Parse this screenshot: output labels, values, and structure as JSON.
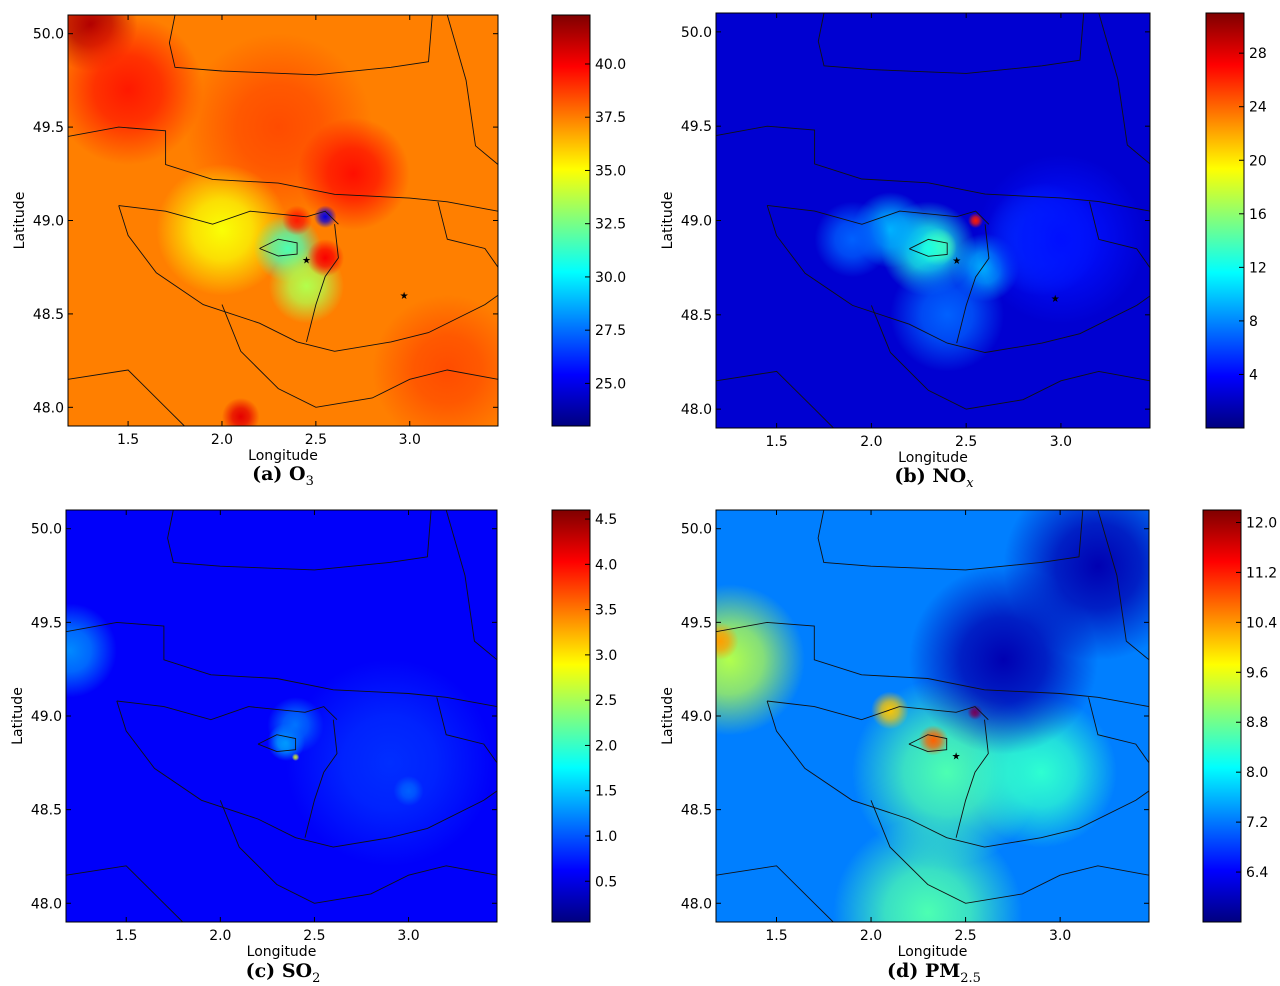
{
  "colormap": [
    "#00007f",
    "#0000ff",
    "#007fff",
    "#00ffff",
    "#7fff7f",
    "#ffff00",
    "#ff7f00",
    "#ff0000",
    "#7f0000"
  ],
  "chart_data": [
    {
      "type": "heatmap",
      "caption_label": "(a)",
      "caption_species": "O",
      "caption_sub": "3",
      "xlabel": "Longitude",
      "ylabel": "Latitude",
      "xlim": [
        1.18,
        3.47
      ],
      "ylim": [
        47.9,
        50.1
      ],
      "xticks": [
        "1.5",
        "2.0",
        "2.5",
        "3.0"
      ],
      "yticks": [
        "48.0",
        "48.5",
        "49.0",
        "49.5",
        "50.0"
      ],
      "cbar_range": [
        23.0,
        42.3
      ],
      "cbar_ticks": [
        "25.0",
        "27.5",
        "30.0",
        "32.5",
        "35.0",
        "37.5",
        "40.0"
      ],
      "background": 0.75,
      "blobs": [
        {
          "lon": 1.3,
          "lat": 50.05,
          "v": 0.95,
          "r": 0.25
        },
        {
          "lon": 1.5,
          "lat": 49.7,
          "v": 0.85,
          "r": 0.4
        },
        {
          "lon": 2.3,
          "lat": 49.5,
          "v": 0.8,
          "r": 0.5
        },
        {
          "lon": 2.7,
          "lat": 49.25,
          "v": 0.86,
          "r": 0.3
        },
        {
          "lon": 2.0,
          "lat": 48.95,
          "v": 0.62,
          "r": 0.35
        },
        {
          "lon": 2.35,
          "lat": 48.85,
          "v": 0.45,
          "r": 0.18
        },
        {
          "lon": 2.55,
          "lat": 49.02,
          "v": 0.1,
          "r": 0.06
        },
        {
          "lon": 2.45,
          "lat": 48.65,
          "v": 0.55,
          "r": 0.2
        },
        {
          "lon": 2.55,
          "lat": 48.8,
          "v": 0.88,
          "r": 0.1
        },
        {
          "lon": 2.4,
          "lat": 49.0,
          "v": 0.85,
          "r": 0.08
        },
        {
          "lon": 2.1,
          "lat": 47.95,
          "v": 0.9,
          "r": 0.1
        },
        {
          "lon": 3.2,
          "lat": 48.2,
          "v": 0.8,
          "r": 0.4
        }
      ],
      "markers": [
        {
          "lon": 2.45,
          "lat": 48.79
        },
        {
          "lon": 2.97,
          "lat": 48.6
        }
      ]
    },
    {
      "type": "heatmap",
      "caption_label": "(b)",
      "caption_species": "NO",
      "caption_sub": "x",
      "xlabel": "Longitude",
      "ylabel": "Latitude",
      "xlim": [
        1.18,
        3.47
      ],
      "ylim": [
        47.9,
        50.1
      ],
      "xticks": [
        "1.5",
        "2.0",
        "2.5",
        "3.0"
      ],
      "yticks": [
        "48.0",
        "48.5",
        "49.0",
        "49.5",
        "50.0"
      ],
      "cbar_range": [
        0.0,
        31.0
      ],
      "cbar_ticks": [
        "4",
        "8",
        "12",
        "16",
        "20",
        "24",
        "28"
      ],
      "background": 0.08,
      "blobs": [
        {
          "lon": 2.35,
          "lat": 48.86,
          "v": 0.6,
          "r": 0.1
        },
        {
          "lon": 2.3,
          "lat": 48.85,
          "v": 0.4,
          "r": 0.25
        },
        {
          "lon": 2.55,
          "lat": 49.0,
          "v": 0.85,
          "r": 0.04
        },
        {
          "lon": 2.1,
          "lat": 48.95,
          "v": 0.3,
          "r": 0.2
        },
        {
          "lon": 2.6,
          "lat": 48.75,
          "v": 0.3,
          "r": 0.18
        },
        {
          "lon": 2.4,
          "lat": 48.5,
          "v": 0.22,
          "r": 0.3
        },
        {
          "lon": 1.9,
          "lat": 48.9,
          "v": 0.22,
          "r": 0.2
        },
        {
          "lon": 2.9,
          "lat": 48.9,
          "v": 0.2,
          "r": 0.3
        },
        {
          "lon": 3.0,
          "lat": 48.9,
          "v": 0.14,
          "r": 0.45
        }
      ],
      "markers": [
        {
          "lon": 2.45,
          "lat": 48.79
        },
        {
          "lon": 2.97,
          "lat": 48.59
        }
      ]
    },
    {
      "type": "heatmap",
      "caption_label": "(c)",
      "caption_species": "SO",
      "caption_sub": "2",
      "xlabel": "Longitude",
      "ylabel": "Latitude",
      "xlim": [
        1.18,
        3.47
      ],
      "ylim": [
        47.9,
        50.1
      ],
      "xticks": [
        "1.5",
        "2.0",
        "2.5",
        "3.0"
      ],
      "yticks": [
        "48.0",
        "48.5",
        "49.0",
        "49.5",
        "50.0"
      ],
      "cbar_range": [
        0.05,
        4.6
      ],
      "cbar_ticks": [
        "0.5",
        "1.0",
        "1.5",
        "2.0",
        "2.5",
        "3.0",
        "3.5",
        "4.0",
        "4.5"
      ],
      "background": 0.12,
      "blobs": [
        {
          "lon": 1.2,
          "lat": 49.35,
          "v": 0.26,
          "r": 0.25
        },
        {
          "lon": 2.35,
          "lat": 48.86,
          "v": 0.3,
          "r": 0.1
        },
        {
          "lon": 2.4,
          "lat": 48.95,
          "v": 0.24,
          "r": 0.15
        },
        {
          "lon": 2.4,
          "lat": 48.78,
          "v": 0.6,
          "r": 0.02
        },
        {
          "lon": 2.9,
          "lat": 48.75,
          "v": 0.17,
          "r": 0.55
        },
        {
          "lon": 3.0,
          "lat": 48.6,
          "v": 0.22,
          "r": 0.08
        }
      ],
      "markers": []
    },
    {
      "type": "heatmap",
      "caption_label": "(d)",
      "caption_species": "PM",
      "caption_sub": "2.5",
      "xlabel": "Longitude",
      "ylabel": "Latitude",
      "xlim": [
        1.18,
        3.47
      ],
      "ylim": [
        47.9,
        50.1
      ],
      "xticks": [
        "1.5",
        "2.0",
        "2.5",
        "3.0"
      ],
      "yticks": [
        "48.0",
        "48.5",
        "49.0",
        "49.5",
        "50.0"
      ],
      "cbar_range": [
        5.6,
        12.2
      ],
      "cbar_ticks": [
        "6.4",
        "7.2",
        "8.0",
        "8.8",
        "9.6",
        "10.4",
        "11.2",
        "12.0"
      ],
      "background": 0.25,
      "blobs": [
        {
          "lon": 1.25,
          "lat": 49.3,
          "v": 0.55,
          "r": 0.4
        },
        {
          "lon": 1.2,
          "lat": 49.4,
          "v": 0.72,
          "r": 0.1
        },
        {
          "lon": 2.3,
          "lat": 47.95,
          "v": 0.45,
          "r": 0.5
        },
        {
          "lon": 2.4,
          "lat": 48.7,
          "v": 0.45,
          "r": 0.5
        },
        {
          "lon": 2.9,
          "lat": 48.7,
          "v": 0.42,
          "r": 0.4
        },
        {
          "lon": 2.33,
          "lat": 48.87,
          "v": 0.78,
          "r": 0.08
        },
        {
          "lon": 2.55,
          "lat": 49.02,
          "v": 0.9,
          "r": 0.04
        },
        {
          "lon": 2.1,
          "lat": 49.03,
          "v": 0.68,
          "r": 0.1
        },
        {
          "lon": 2.7,
          "lat": 49.3,
          "v": 0.05,
          "r": 0.5
        },
        {
          "lon": 3.2,
          "lat": 49.8,
          "v": 0.05,
          "r": 0.5
        }
      ],
      "markers": [
        {
          "lon": 2.45,
          "lat": 48.79
        }
      ]
    }
  ]
}
